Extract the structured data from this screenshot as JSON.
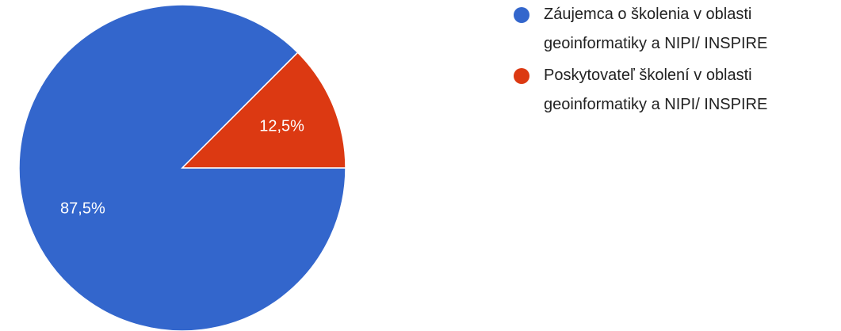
{
  "chart_data": {
    "type": "pie",
    "categories": [
      "Záujemca o školenia v oblasti geoinformatiky a NIPI/ INSPIRE",
      "Poskytovateľ školení v oblasti geoinformatiky a NIPI/ INSPIRE"
    ],
    "values": [
      87.5,
      12.5
    ],
    "value_labels": [
      "87,5%",
      "12,5%"
    ],
    "colors": [
      "#3366cc",
      "#dc3912"
    ],
    "legend": "right"
  }
}
